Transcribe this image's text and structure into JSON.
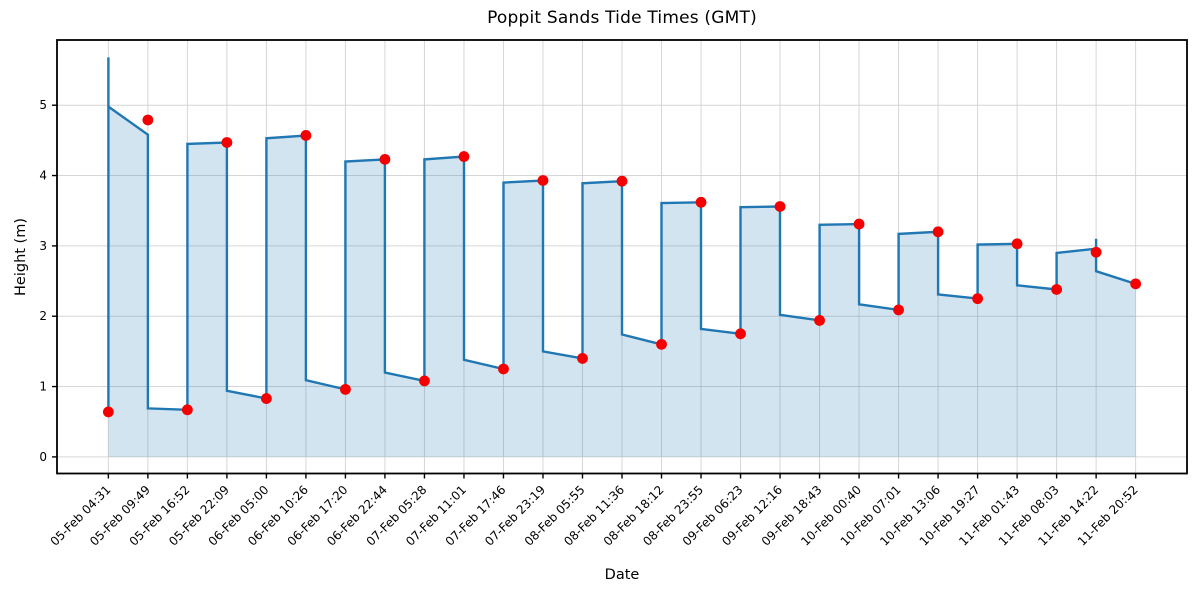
{
  "figure": {
    "title": "Poppit Sands Tide Times (GMT)",
    "xlabel": "Date",
    "ylabel": "Height (m)"
  },
  "chart_data": {
    "type": "line",
    "subtype": "tide-step-curve-with-markers",
    "title": "Poppit Sands Tide Times (GMT)",
    "xlabel": "Date",
    "ylabel": "Height (m)",
    "legend": null,
    "grid": true,
    "y_ticks": [
      0,
      1,
      2,
      3,
      4,
      5
    ],
    "ylim": [
      -0.24,
      5.93
    ],
    "x_tick_labels": [
      "05-Feb 04:31",
      "05-Feb 09:49",
      "05-Feb 16:52",
      "05-Feb 22:09",
      "06-Feb 05:00",
      "06-Feb 10:26",
      "06-Feb 17:20",
      "06-Feb 22:44",
      "07-Feb 05:28",
      "07-Feb 11:01",
      "07-Feb 17:46",
      "07-Feb 23:19",
      "08-Feb 05:55",
      "08-Feb 11:36",
      "08-Feb 18:12",
      "08-Feb 23:55",
      "09-Feb 06:23",
      "09-Feb 12:16",
      "09-Feb 18:43",
      "10-Feb 00:40",
      "10-Feb 07:01",
      "10-Feb 13:06",
      "10-Feb 19:27",
      "11-Feb 01:43",
      "11-Feb 08:03",
      "11-Feb 14:22",
      "11-Feb 20:52"
    ],
    "events": [
      {
        "time": "05-Feb 04:31",
        "height": 0.64,
        "type": "low"
      },
      {
        "time": "05-Feb 09:49",
        "height": 4.79,
        "type": "high"
      },
      {
        "time": "05-Feb 16:52",
        "height": 0.67,
        "type": "low"
      },
      {
        "time": "05-Feb 22:09",
        "height": 4.47,
        "type": "high"
      },
      {
        "time": "06-Feb 05:00",
        "height": 0.83,
        "type": "low"
      },
      {
        "time": "06-Feb 10:26",
        "height": 4.57,
        "type": "high"
      },
      {
        "time": "06-Feb 17:20",
        "height": 0.96,
        "type": "low"
      },
      {
        "time": "06-Feb 22:44",
        "height": 4.23,
        "type": "high"
      },
      {
        "time": "07-Feb 05:28",
        "height": 1.08,
        "type": "low"
      },
      {
        "time": "07-Feb 11:01",
        "height": 4.27,
        "type": "high"
      },
      {
        "time": "07-Feb 17:46",
        "height": 1.25,
        "type": "low"
      },
      {
        "time": "07-Feb 23:19",
        "height": 3.93,
        "type": "high"
      },
      {
        "time": "08-Feb 05:55",
        "height": 1.4,
        "type": "low"
      },
      {
        "time": "08-Feb 11:36",
        "height": 3.92,
        "type": "high"
      },
      {
        "time": "08-Feb 18:12",
        "height": 1.6,
        "type": "low"
      },
      {
        "time": "08-Feb 23:55",
        "height": 3.62,
        "type": "high"
      },
      {
        "time": "09-Feb 06:23",
        "height": 1.75,
        "type": "low"
      },
      {
        "time": "09-Feb 12:16",
        "height": 3.56,
        "type": "high"
      },
      {
        "time": "09-Feb 18:43",
        "height": 1.94,
        "type": "low"
      },
      {
        "time": "10-Feb 00:40",
        "height": 3.31,
        "type": "high"
      },
      {
        "time": "10-Feb 07:01",
        "height": 2.09,
        "type": "low"
      },
      {
        "time": "10-Feb 13:06",
        "height": 3.2,
        "type": "high"
      },
      {
        "time": "10-Feb 19:27",
        "height": 2.25,
        "type": "low"
      },
      {
        "time": "11-Feb 01:43",
        "height": 3.03,
        "type": "high"
      },
      {
        "time": "11-Feb 08:03",
        "height": 2.38,
        "type": "low"
      },
      {
        "time": "11-Feb 14:22",
        "height": 2.91,
        "type": "high"
      },
      {
        "time": "11-Feb 20:52",
        "height": 2.46,
        "type": "low"
      }
    ],
    "curve_vertices": [
      [
        0,
        0.64
      ],
      [
        0,
        5.68
      ],
      [
        0,
        4.98
      ],
      [
        1,
        4.58
      ],
      [
        1,
        0.69
      ],
      [
        2,
        0.67
      ],
      [
        2,
        4.45
      ],
      [
        3,
        4.47
      ],
      [
        3,
        0.94
      ],
      [
        4,
        0.83
      ],
      [
        4,
        4.53
      ],
      [
        5,
        4.57
      ],
      [
        5,
        1.09
      ],
      [
        6,
        0.96
      ],
      [
        6,
        4.2
      ],
      [
        7,
        4.23
      ],
      [
        7,
        1.2
      ],
      [
        8,
        1.08
      ],
      [
        8,
        4.23
      ],
      [
        9,
        4.27
      ],
      [
        9,
        1.38
      ],
      [
        10,
        1.25
      ],
      [
        10,
        3.9
      ],
      [
        11,
        3.93
      ],
      [
        11,
        1.5
      ],
      [
        12,
        1.4
      ],
      [
        12,
        3.89
      ],
      [
        13,
        3.92
      ],
      [
        13,
        1.74
      ],
      [
        14,
        1.6
      ],
      [
        14,
        3.61
      ],
      [
        15,
        3.62
      ],
      [
        15,
        1.82
      ],
      [
        16,
        1.75
      ],
      [
        16,
        3.55
      ],
      [
        17,
        3.56
      ],
      [
        17,
        2.02
      ],
      [
        18,
        1.94
      ],
      [
        18,
        3.3
      ],
      [
        19,
        3.31
      ],
      [
        19,
        2.17
      ],
      [
        20,
        2.09
      ],
      [
        20,
        3.17
      ],
      [
        21,
        3.2
      ],
      [
        21,
        2.31
      ],
      [
        22,
        2.25
      ],
      [
        22,
        3.02
      ],
      [
        23,
        3.03
      ],
      [
        23,
        2.44
      ],
      [
        24,
        2.38
      ],
      [
        24,
        2.9
      ],
      [
        25,
        2.96
      ],
      [
        25,
        3.1
      ],
      [
        25,
        2.64
      ],
      [
        26,
        2.46
      ]
    ],
    "style": {
      "line_color": "#1f77b4",
      "fill_color": "#1f77b4",
      "fill_opacity": 0.2,
      "point_color": "#f40000",
      "grid_color": "#cfcfcf",
      "axis_color": "#000000",
      "text_color": "#000000"
    }
  }
}
